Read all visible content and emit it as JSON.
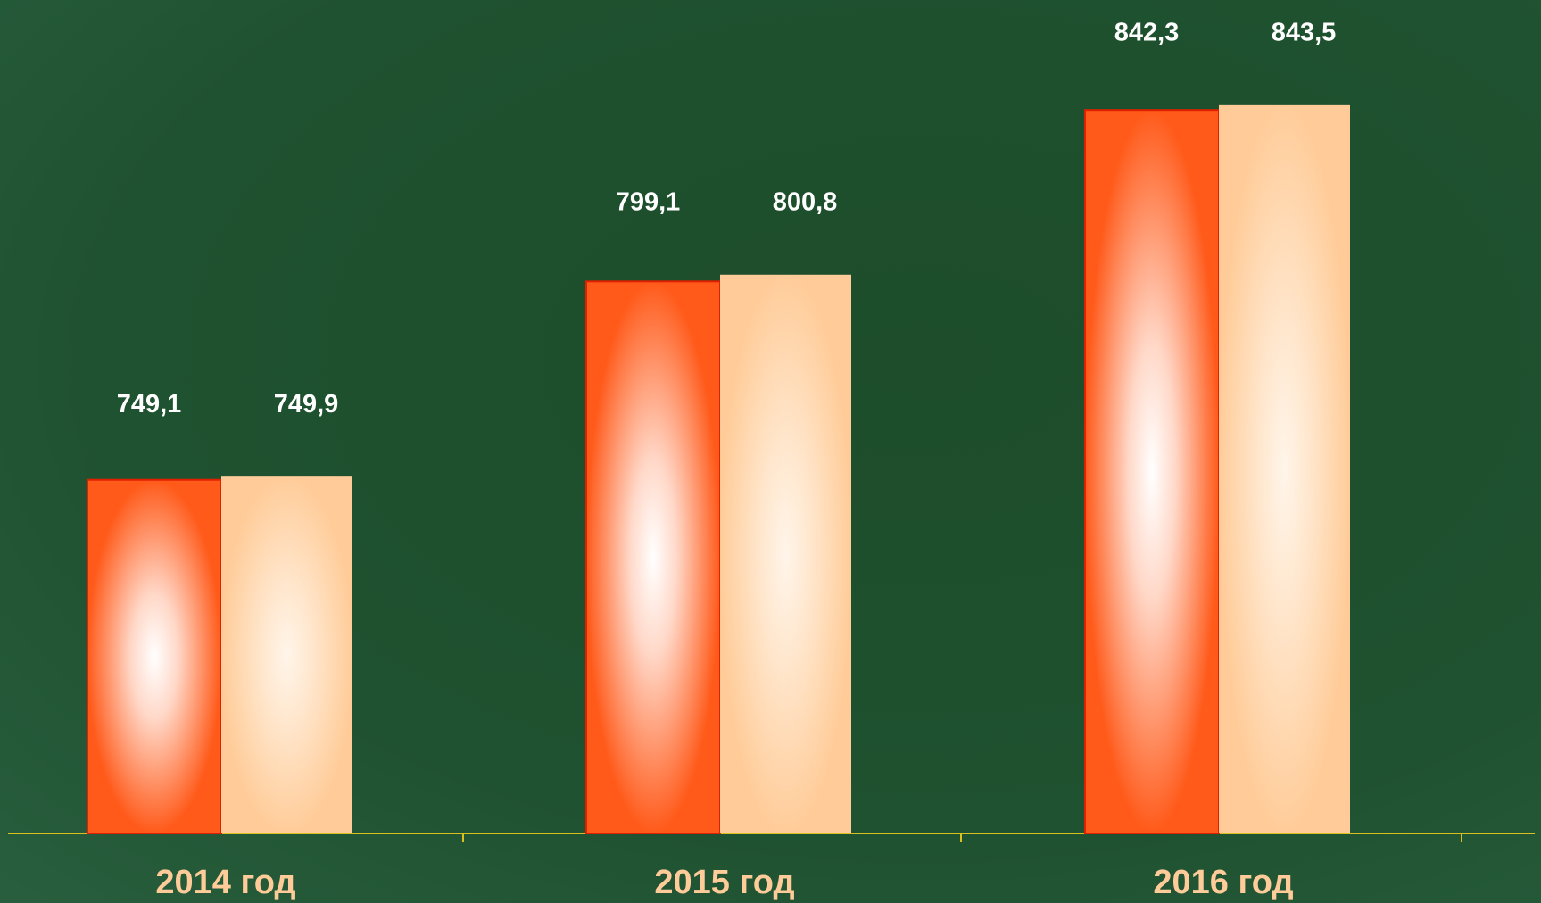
{
  "chart_data": {
    "type": "bar",
    "categories": [
      "2014 год",
      "2015 год",
      "2016 год"
    ],
    "series": [
      {
        "color": "#ff5a1a",
        "values": [
          749.1,
          799.1,
          842.3
        ],
        "value_labels": [
          "749,1",
          "799,1",
          "842,3"
        ]
      },
      {
        "color": "#ffcc99",
        "values": [
          749.9,
          800.8,
          843.5
        ],
        "value_labels": [
          "749,9",
          "800,8",
          "843,5"
        ]
      }
    ],
    "ylim": [
      660,
      870
    ]
  }
}
